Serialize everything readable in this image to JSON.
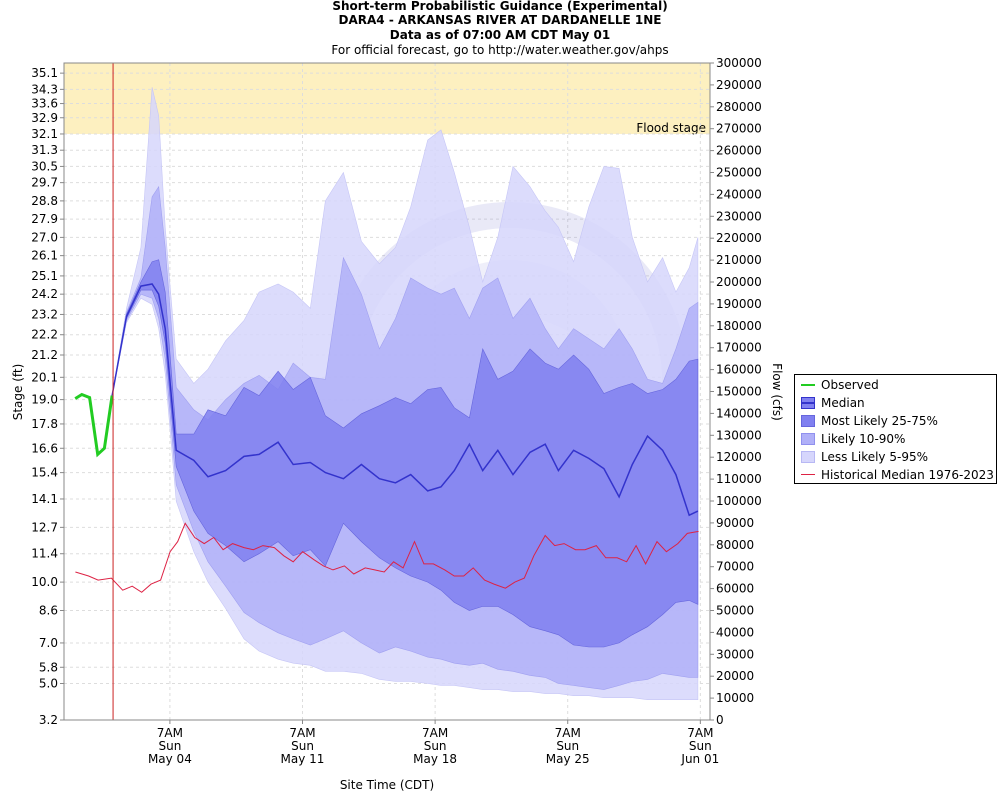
{
  "header": {
    "title": "Short-term Probabilistic Guidance (Experimental)",
    "station": "DARA4 - ARKANSAS RIVER AT DARDANELLE 1NE",
    "data_as_of": "Data as of 07:00 AM CDT May 01",
    "official": "For official forecast, go to http://water.weather.gov/ahps"
  },
  "flood_label": "Flood stage",
  "legend": {
    "observed": "Observed",
    "median": "Median",
    "likely_25_75": "Most Likely 25-75%",
    "likely_10_90": "Likely 10-90%",
    "likely_5_95": "Less Likely 5-95%",
    "historical": "Historical Median 1976-2023"
  },
  "colors": {
    "observed": "#22cc22",
    "median": "#3333cc",
    "band_25_75": "#8080f0",
    "band_10_90": "#b0b0f8",
    "band_5_95": "#d6d6fc",
    "historical": "#dd2244",
    "flood_zone": "#fdf0c0",
    "current_time_line": "#cc2222"
  },
  "chart_data": {
    "type": "area",
    "xlabel": "Site Time (CDT)",
    "ylabel": "Stage (ft)",
    "y2label": "Flow (cfs)",
    "ylim": [
      3.2,
      35.6
    ],
    "y2lim": [
      0,
      300000
    ],
    "flood_stage": 32.1,
    "grid": true,
    "legend_position": "right",
    "x_unit": "days after May 01 00:00",
    "xlim": [
      -2.3,
      31.8
    ],
    "now": 0.29,
    "y_ticks": [
      "3.2",
      "5.0",
      "5.8",
      "7.0",
      "8.6",
      "10.0",
      "11.4",
      "12.7",
      "14.1",
      "15.4",
      "16.6",
      "17.8",
      "19.0",
      "20.1",
      "21.2",
      "22.2",
      "23.2",
      "24.2",
      "25.1",
      "26.1",
      "27.0",
      "27.9",
      "28.8",
      "29.7",
      "30.5",
      "31.3",
      "32.1",
      "32.9",
      "33.6",
      "34.3",
      "35.1"
    ],
    "y2_ticks": [
      "0",
      "10000",
      "20000",
      "30000",
      "40000",
      "50000",
      "60000",
      "70000",
      "80000",
      "90000",
      "100000",
      "110000",
      "120000",
      "130000",
      "140000",
      "150000",
      "160000",
      "170000",
      "180000",
      "190000",
      "200000",
      "210000",
      "220000",
      "230000",
      "240000",
      "250000",
      "260000",
      "270000",
      "280000",
      "290000",
      "300000"
    ],
    "x_ticks": [
      {
        "x": 3.29,
        "lines": [
          "7AM",
          "Sun",
          "May 04"
        ]
      },
      {
        "x": 10.29,
        "lines": [
          "7AM",
          "Sun",
          "May 11"
        ]
      },
      {
        "x": 17.29,
        "lines": [
          "7AM",
          "Sun",
          "May 18"
        ]
      },
      {
        "x": 24.29,
        "lines": [
          "7AM",
          "Sun",
          "May 25"
        ]
      },
      {
        "x": 31.29,
        "lines": [
          "7AM",
          "Sun",
          "Jun 01"
        ]
      }
    ],
    "observed": {
      "x": [
        -1.71,
        -1.36,
        -0.95,
        -0.52,
        -0.17,
        0.24
      ],
      "y": [
        19.05,
        19.25,
        19.1,
        16.3,
        16.6,
        19.2
      ]
    },
    "forecast_x": [
      0.24,
      1.0,
      1.76,
      2.35,
      2.7,
      3.04,
      3.62,
      4.55,
      5.3,
      6.23,
      7.2,
      8.0,
      9.0,
      9.8,
      10.7,
      11.5,
      12.45,
      13.4,
      14.35,
      15.2,
      16.0,
      16.9,
      17.6,
      18.3,
      19.1,
      19.8,
      20.6,
      21.4,
      22.3,
      23.1,
      23.8,
      24.6,
      25.4,
      26.2,
      27.0,
      27.7,
      28.5,
      29.3,
      30.0,
      30.7,
      31.16
    ],
    "series": [
      {
        "name": "Less Likely 5-95%",
        "role": "upper",
        "y": [
          19.2,
          23.5,
          26.5,
          34.4,
          33.0,
          27.5,
          21.0,
          19.8,
          20.5,
          21.9,
          22.9,
          24.3,
          24.7,
          24.3,
          23.5,
          28.8,
          30.2,
          26.8,
          25.7,
          26.5,
          28.5,
          31.8,
          32.3,
          30.2,
          27.5,
          24.8,
          27.0,
          30.5,
          29.5,
          28.3,
          27.5,
          25.8,
          28.5,
          30.5,
          30.4,
          27.0,
          24.8,
          26.0,
          24.3,
          25.5,
          27.0
        ]
      },
      {
        "name": "Likely 10-90%",
        "role": "upper",
        "y": [
          19.2,
          23.3,
          25.0,
          29.0,
          29.5,
          26.5,
          19.6,
          18.5,
          18.0,
          19.0,
          19.8,
          20.2,
          19.5,
          20.8,
          20.1,
          20.0,
          26.0,
          24.2,
          21.5,
          23.0,
          25.0,
          24.5,
          24.2,
          24.5,
          23.0,
          24.5,
          25.0,
          23.0,
          24.0,
          22.5,
          21.5,
          22.5,
          22.0,
          21.5,
          22.5,
          21.5,
          20.0,
          19.8,
          21.5,
          23.5,
          23.8
        ]
      },
      {
        "name": "Most Likely 25-75%",
        "role": "upper",
        "y": [
          19.2,
          23.2,
          24.8,
          25.8,
          25.9,
          24.3,
          17.3,
          17.3,
          18.5,
          18.2,
          19.6,
          19.2,
          20.4,
          19.5,
          20.1,
          18.2,
          17.6,
          18.3,
          18.7,
          19.1,
          18.8,
          19.5,
          19.6,
          18.6,
          18.1,
          21.5,
          20.0,
          20.4,
          21.5,
          20.8,
          20.5,
          21.2,
          20.5,
          19.3,
          19.6,
          19.8,
          19.3,
          19.5,
          20.0,
          20.9,
          21.0
        ]
      },
      {
        "name": "Median",
        "role": "line",
        "y": [
          19.2,
          23.1,
          24.6,
          24.7,
          24.2,
          22.5,
          16.5,
          16.0,
          15.2,
          15.5,
          16.2,
          16.3,
          16.9,
          15.8,
          15.9,
          15.4,
          15.1,
          15.8,
          15.1,
          14.9,
          15.3,
          14.5,
          14.7,
          15.5,
          16.8,
          15.5,
          16.5,
          15.3,
          16.4,
          16.8,
          15.5,
          16.5,
          16.1,
          15.6,
          14.2,
          15.8,
          17.2,
          16.5,
          15.3,
          13.3,
          13.5
        ]
      },
      {
        "name": "Most Likely 25-75%",
        "role": "lower",
        "y": [
          19.2,
          23.0,
          24.4,
          24.4,
          23.6,
          21.8,
          15.7,
          13.5,
          12.4,
          11.8,
          11.0,
          11.4,
          12.0,
          11.3,
          11.6,
          10.8,
          12.9,
          12.0,
          11.2,
          10.7,
          10.3,
          10.0,
          9.6,
          9.0,
          8.6,
          8.8,
          8.8,
          8.4,
          7.8,
          7.6,
          7.4,
          6.9,
          6.8,
          6.8,
          7.0,
          7.4,
          7.8,
          8.4,
          9.0,
          9.1,
          8.9
        ]
      },
      {
        "name": "Likely 10-90%",
        "role": "lower",
        "y": [
          19.2,
          22.9,
          24.2,
          24.0,
          23.0,
          21.0,
          14.8,
          12.5,
          11.0,
          9.8,
          8.5,
          8.0,
          7.5,
          7.2,
          6.9,
          7.2,
          7.6,
          7.0,
          6.5,
          6.8,
          6.6,
          6.3,
          6.2,
          6.0,
          5.9,
          6.0,
          5.7,
          5.6,
          5.4,
          5.3,
          5.0,
          4.9,
          4.8,
          4.7,
          4.9,
          5.1,
          5.2,
          5.5,
          5.4,
          5.3,
          5.3
        ]
      },
      {
        "name": "Less Likely 5-95%",
        "role": "lower",
        "y": [
          19.2,
          22.8,
          24.0,
          23.7,
          22.5,
          20.3,
          14.0,
          11.5,
          10.0,
          8.7,
          7.2,
          6.6,
          6.2,
          6.0,
          5.9,
          5.6,
          5.6,
          5.5,
          5.2,
          5.1,
          5.1,
          5.0,
          4.9,
          4.9,
          4.8,
          4.7,
          4.7,
          4.6,
          4.6,
          4.5,
          4.5,
          4.4,
          4.4,
          4.3,
          4.3,
          4.3,
          4.2,
          4.2,
          4.2,
          4.2,
          4.2
        ]
      }
    ],
    "historical": {
      "name": "Historical Median 1976-2023",
      "x": [
        -1.7,
        -1.0,
        -0.5,
        0.2,
        0.8,
        1.3,
        1.8,
        2.3,
        2.8,
        3.3,
        3.7,
        4.1,
        4.6,
        5.1,
        5.6,
        6.1,
        6.6,
        7.2,
        7.7,
        8.2,
        8.8,
        9.3,
        9.8,
        10.3,
        10.9,
        11.4,
        11.9,
        12.5,
        13.0,
        13.6,
        14.1,
        14.6,
        15.1,
        15.6,
        16.2,
        16.7,
        17.2,
        17.8,
        18.3,
        18.8,
        19.3,
        19.9,
        20.4,
        21.0,
        21.5,
        22.0,
        22.5,
        23.1,
        23.6,
        24.1,
        24.7,
        25.2,
        25.8,
        26.3,
        26.9,
        27.4,
        27.9,
        28.4,
        29.0,
        29.5,
        30.1,
        30.6,
        31.2
      ],
      "y": [
        10.5,
        10.3,
        10.1,
        10.2,
        9.6,
        9.8,
        9.5,
        9.9,
        10.1,
        11.5,
        12.0,
        12.9,
        12.2,
        11.9,
        12.2,
        11.6,
        11.9,
        11.7,
        11.6,
        11.8,
        11.7,
        11.3,
        11.0,
        11.5,
        11.1,
        10.8,
        10.6,
        10.8,
        10.4,
        10.7,
        10.6,
        10.5,
        11.0,
        10.7,
        12.0,
        10.9,
        10.9,
        10.6,
        10.3,
        10.3,
        10.7,
        10.1,
        9.9,
        9.7,
        10.0,
        10.2,
        11.3,
        12.3,
        11.8,
        11.9,
        11.6,
        11.6,
        11.8,
        11.2,
        11.2,
        11.0,
        11.8,
        10.9,
        12.0,
        11.5,
        11.9,
        12.4,
        12.5
      ]
    }
  }
}
